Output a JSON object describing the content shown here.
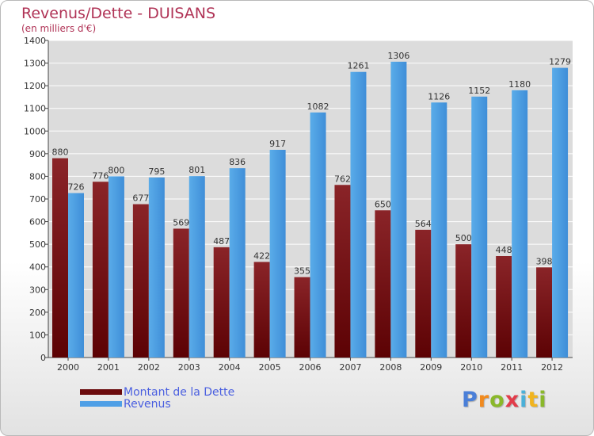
{
  "page": {
    "title": "Revenus/Dette - DUISANS",
    "subtitle": "(en milliers d'€)",
    "brand": "Proxiti",
    "brand_letter_colors": [
      "#4a7fd8",
      "#f18a1e",
      "#8ab82a",
      "#e23c4a",
      "#4ab0d8",
      "#f1b41e",
      "#8ab82a"
    ]
  },
  "chart_data": {
    "type": "bar",
    "categories": [
      "2000",
      "2001",
      "2002",
      "2003",
      "2004",
      "2005",
      "2006",
      "2007",
      "2008",
      "2009",
      "2010",
      "2011",
      "2012"
    ],
    "series": [
      {
        "name": "Montant de la Dette",
        "color": "#7a0d0f",
        "values": [
          880,
          776,
          677,
          569,
          487,
          422,
          355,
          762,
          650,
          564,
          500,
          448,
          398
        ]
      },
      {
        "name": "Revenus",
        "color": "#4f9fe6",
        "values": [
          726,
          800,
          795,
          801,
          836,
          917,
          1082,
          1261,
          1306,
          1126,
          1152,
          1180,
          1279
        ]
      }
    ],
    "ylim": [
      0,
      1400
    ],
    "yticks": [
      0,
      100,
      200,
      300,
      400,
      500,
      600,
      700,
      800,
      900,
      1000,
      1100,
      1200,
      1300,
      1400
    ],
    "grid": true,
    "legend_position": "bottom-left"
  }
}
